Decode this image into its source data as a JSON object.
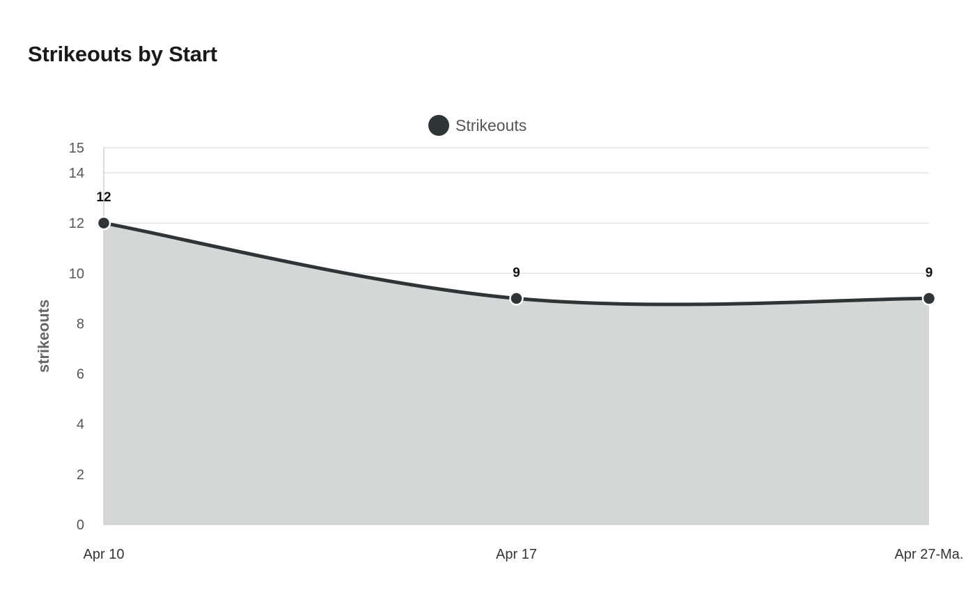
{
  "title": "Strikeouts by Start",
  "colors": {
    "series": "#2f3537",
    "area_fill": "#d5d7d6",
    "grid": "#e3e3e3",
    "axis": "#cfcfcf"
  },
  "chart_data": {
    "type": "area",
    "title": "Strikeouts by Start",
    "categories": [
      "Apr 10",
      "Apr 17",
      "Apr 27-Ma."
    ],
    "series": [
      {
        "name": "Strikeouts",
        "values": [
          12,
          9,
          9
        ]
      }
    ],
    "xlabel": "",
    "ylabel": "strikeouts",
    "ylim": [
      0,
      15
    ],
    "yticks": [
      0,
      2,
      4,
      6,
      8,
      10,
      12,
      14,
      15
    ],
    "grid": true,
    "legend": "top-center",
    "data_labels": true,
    "smooth": true
  }
}
